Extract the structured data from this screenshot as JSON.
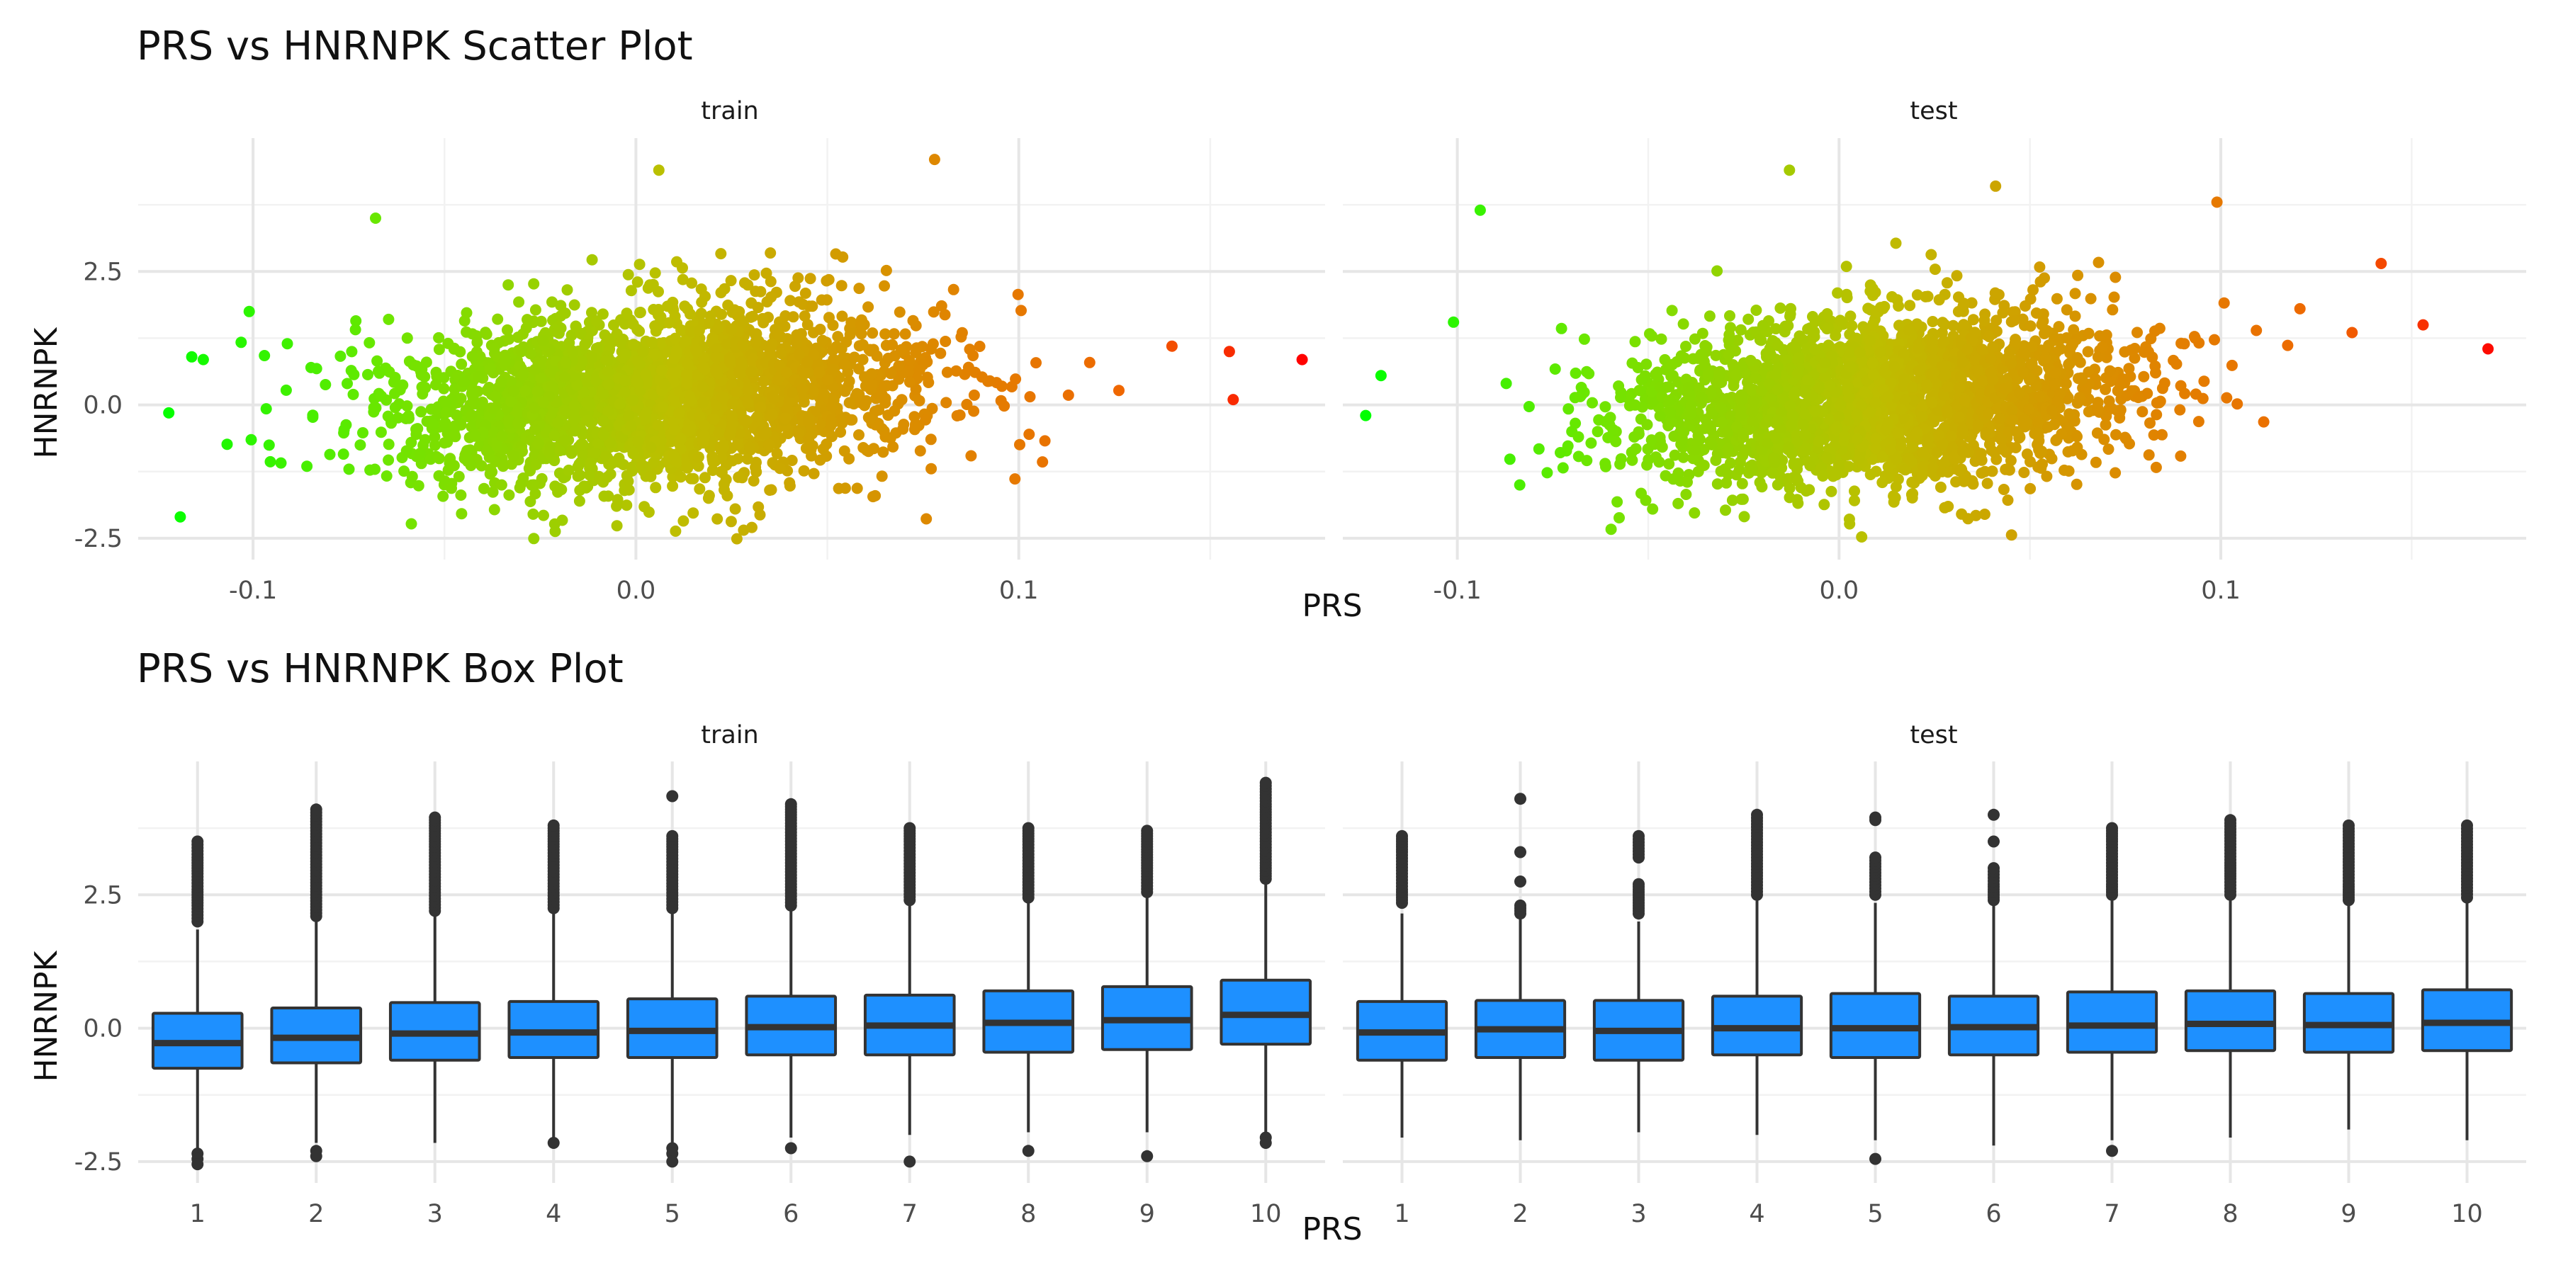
{
  "figure": {
    "scatter_title": "PRS vs HNRNPK Scatter Plot",
    "box_title": "PRS vs HNRNPK Box Plot",
    "xlabel": "PRS",
    "ylabel": "HNRNPK",
    "panels": [
      "train",
      "test"
    ],
    "scatter_x_ticks": [
      "-0.1",
      "0.0",
      "0.1"
    ],
    "y_ticks": [
      "2.5",
      "0.0",
      "-2.5"
    ],
    "box_x_ticks": [
      "1",
      "2",
      "3",
      "4",
      "5",
      "6",
      "7",
      "8",
      "9",
      "10"
    ],
    "colors": {
      "low": "#00ff00",
      "high": "#ff0000",
      "box_fill": "#1e90ff",
      "box_line": "#333333"
    }
  },
  "chart_data": [
    {
      "type": "scatter",
      "title": "PRS vs HNRNPK Scatter Plot",
      "xlabel": "PRS",
      "ylabel": "HNRNPK",
      "facets": [
        "train",
        "test"
      ],
      "xlim": [
        -0.13,
        0.18
      ],
      "ylim": [
        -2.9,
        5.0
      ],
      "x_ticks": [
        -0.1,
        0.0,
        0.1
      ],
      "y_ticks": [
        -2.5,
        0.0,
        2.5
      ],
      "color_scale": {
        "variable": "PRS",
        "low": "#00ff00",
        "high": "#ff0000"
      },
      "grid": true,
      "distribution": {
        "train": {
          "x_center": 0.005,
          "x_sd": 0.035,
          "y_center": 0.15,
          "y_sd": 0.85
        },
        "test": {
          "x_center": 0.01,
          "x_sd": 0.033,
          "y_center": 0.1,
          "y_sd": 0.8
        }
      },
      "extreme_points": {
        "train": [
          [
            -0.122,
            -0.15
          ],
          [
            -0.119,
            -2.1
          ],
          [
            -0.116,
            0.9
          ],
          [
            -0.113,
            0.85
          ],
          [
            -0.101,
            1.75
          ],
          [
            -0.068,
            3.5
          ],
          [
            0.006,
            4.4
          ],
          [
            0.078,
            4.6
          ],
          [
            0.14,
            1.1
          ],
          [
            0.155,
            1.0
          ],
          [
            0.156,
            0.1
          ],
          [
            0.174,
            0.85
          ]
        ],
        "test": [
          [
            -0.124,
            -0.2
          ],
          [
            -0.12,
            0.55
          ],
          [
            -0.101,
            1.55
          ],
          [
            -0.094,
            3.65
          ],
          [
            -0.013,
            4.4
          ],
          [
            0.041,
            4.1
          ],
          [
            0.099,
            3.8
          ],
          [
            0.142,
            2.65
          ],
          [
            0.153,
            1.5
          ],
          [
            0.17,
            1.05
          ]
        ]
      }
    },
    {
      "type": "box",
      "title": "PRS vs HNRNPK Box Plot",
      "xlabel": "PRS",
      "ylabel": "HNRNPK",
      "facets": [
        "train",
        "test"
      ],
      "categories": [
        "1",
        "2",
        "3",
        "4",
        "5",
        "6",
        "7",
        "8",
        "9",
        "10"
      ],
      "ylim": [
        -2.9,
        5.0
      ],
      "y_ticks": [
        -2.5,
        0.0,
        2.5
      ],
      "grid": true,
      "series": [
        {
          "name": "train",
          "q1": [
            -0.75,
            -0.65,
            -0.6,
            -0.55,
            -0.55,
            -0.5,
            -0.5,
            -0.45,
            -0.4,
            -0.3
          ],
          "median": [
            -0.28,
            -0.18,
            -0.1,
            -0.08,
            -0.05,
            0.02,
            0.05,
            0.1,
            0.15,
            0.25
          ],
          "q3": [
            0.28,
            0.38,
            0.48,
            0.5,
            0.55,
            0.6,
            0.62,
            0.7,
            0.78,
            0.9
          ],
          "whisker_low": [
            -2.25,
            -2.15,
            -2.15,
            -2.1,
            -2.15,
            -2.05,
            -2.0,
            -1.95,
            -1.95,
            -1.95
          ],
          "whisker_high": [
            1.85,
            2.0,
            2.1,
            2.15,
            2.15,
            2.2,
            2.3,
            2.35,
            2.45,
            2.7
          ],
          "outliers_high": [
            [
              2.0,
              2.3,
              2.6,
              2.9,
              3.2,
              3.5
            ],
            [
              2.1,
              2.5,
              2.9,
              3.3,
              3.7,
              4.1
            ],
            [
              2.2,
              2.6,
              3.0,
              3.4,
              3.7,
              3.95
            ],
            [
              2.25,
              2.6,
              3.0,
              3.4,
              3.6,
              3.8
            ],
            [
              2.25,
              2.6,
              3.0,
              3.3,
              3.6,
              4.35
            ],
            [
              2.3,
              2.7,
              3.1,
              3.5,
              3.9,
              4.2
            ],
            [
              2.4,
              2.8,
              3.2,
              3.5,
              3.75
            ],
            [
              2.45,
              2.8,
              3.2,
              3.5,
              3.75
            ],
            [
              2.55,
              2.9,
              3.2,
              3.45,
              3.7
            ],
            [
              2.8,
              3.1,
              3.5,
              3.9,
              4.2,
              4.6
            ]
          ],
          "outliers_low": [
            [
              -2.35,
              -2.45,
              -2.55
            ],
            [
              -2.3,
              -2.4
            ],
            [],
            [
              -2.15
            ],
            [
              -2.25,
              -2.35,
              -2.5
            ],
            [
              -2.25
            ],
            [
              -2.5
            ],
            [
              -2.3
            ],
            [
              -2.4
            ],
            [
              -2.05,
              -2.15
            ]
          ]
        },
        {
          "name": "test",
          "q1": [
            -0.6,
            -0.55,
            -0.6,
            -0.5,
            -0.55,
            -0.5,
            -0.45,
            -0.42,
            -0.45,
            -0.42
          ],
          "median": [
            -0.08,
            -0.02,
            -0.05,
            0.0,
            0.0,
            0.02,
            0.05,
            0.08,
            0.06,
            0.1
          ],
          "q3": [
            0.5,
            0.52,
            0.52,
            0.6,
            0.65,
            0.6,
            0.68,
            0.7,
            0.65,
            0.72
          ],
          "whisker_low": [
            -2.05,
            -2.1,
            -1.95,
            -2.0,
            -2.1,
            -2.2,
            -2.1,
            -2.05,
            -1.9,
            -2.1
          ],
          "whisker_high": [
            2.15,
            2.1,
            2.0,
            2.4,
            2.35,
            2.3,
            2.45,
            2.45,
            2.3,
            2.4
          ],
          "outliers_high": [
            [
              2.35,
              2.6,
              2.9,
              3.3,
              3.6
            ],
            [
              2.15,
              2.3,
              2.75,
              3.3,
              4.3
            ],
            [
              2.15,
              2.4,
              2.7,
              3.2,
              3.6
            ],
            [
              2.5,
              2.8,
              3.2,
              3.6,
              4.0
            ],
            [
              2.5,
              2.8,
              3.2,
              3.9,
              3.95
            ],
            [
              2.4,
              2.7,
              3.0,
              3.5,
              4.0
            ],
            [
              2.5,
              2.7,
              3.1,
              3.5,
              3.75
            ],
            [
              2.5,
              2.8,
              3.1,
              3.45,
              3.9
            ],
            [
              2.4,
              2.7,
              3.0,
              3.4,
              3.8
            ],
            [
              2.45,
              2.75,
              3.1,
              3.5,
              3.8
            ]
          ],
          "outliers_low": [
            [],
            [],
            [],
            [],
            [
              -2.45
            ],
            [],
            [
              -2.3
            ],
            [],
            [],
            []
          ]
        }
      ]
    }
  ]
}
